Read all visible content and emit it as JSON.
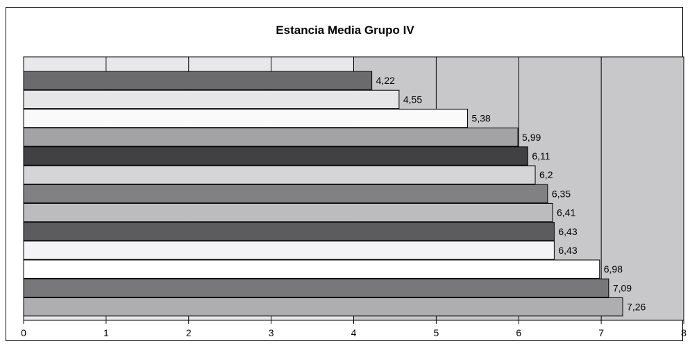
{
  "chart_data": {
    "type": "bar",
    "orientation": "horizontal",
    "title": "Estancia Media Grupo IV",
    "xlabel": "",
    "ylabel": "",
    "xlim": [
      0,
      8
    ],
    "x_ticks": [
      "0",
      "1",
      "2",
      "3",
      "4",
      "5",
      "6",
      "7",
      "8"
    ],
    "grid": "vertical",
    "legend": "none",
    "values": [
      4.22,
      4.55,
      5.38,
      5.99,
      6.11,
      6.2,
      6.35,
      6.41,
      6.43,
      6.43,
      6.98,
      7.09,
      7.26
    ],
    "data_labels": [
      "4,22",
      "4,55",
      "5,38",
      "5,99",
      "6,11",
      "6,2",
      "6,35",
      "6,41",
      "6,43",
      "6,43",
      "6,98",
      "7,09",
      "7,26"
    ],
    "bar_colors": [
      "#6b6b6e",
      "#e6e6e8",
      "#fafafa",
      "#a3a3a6",
      "#414144",
      "#d5d5d7",
      "#818184",
      "#bcbcbf",
      "#5c5c5f",
      "#f4f4f6",
      "#ffffff",
      "#78787b",
      "#aeaeb1"
    ],
    "plot_background_bands": [
      "#e8e8ea",
      "#c8c8cb"
    ]
  }
}
